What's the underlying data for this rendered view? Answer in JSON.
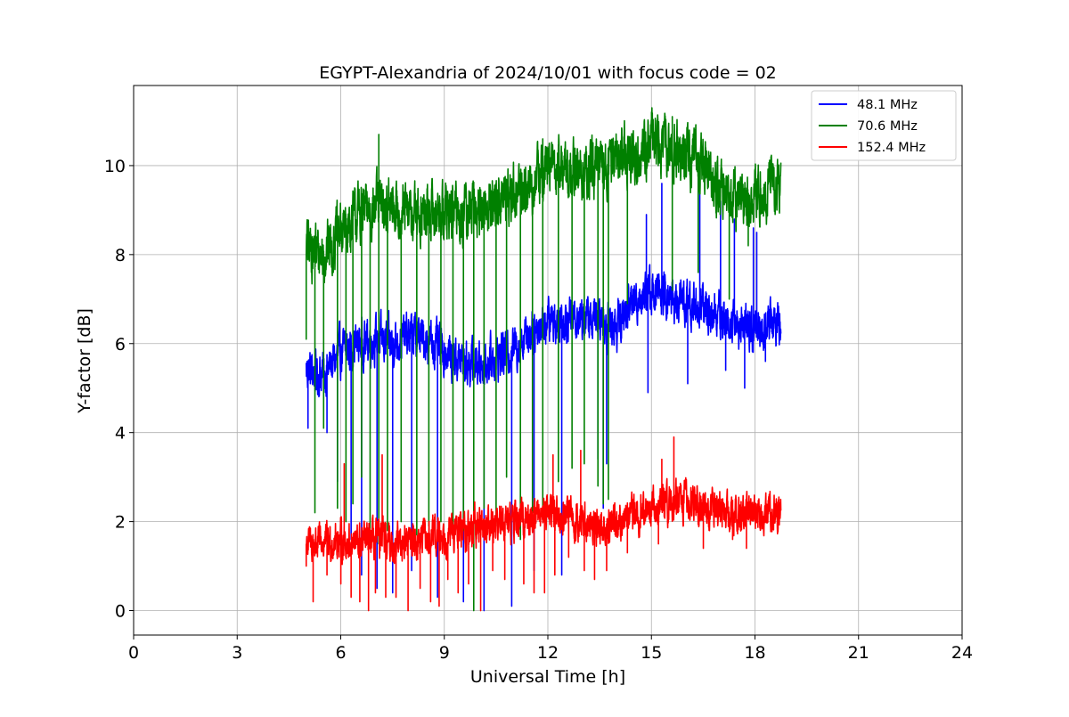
{
  "chart_data": {
    "type": "line",
    "title": "EGYPT-Alexandria of 2024/10/01 with focus code = 02",
    "xlabel": "Universal Time [h]",
    "ylabel": "Y-factor [dB]",
    "xlim": [
      0,
      24
    ],
    "ylim": [
      -0.55,
      11.8
    ],
    "xticks": [
      0,
      3,
      6,
      9,
      12,
      15,
      18,
      21,
      24
    ],
    "xtick_labels": [
      "0",
      "3",
      "6",
      "9",
      "12",
      "15",
      "18",
      "21",
      "24"
    ],
    "yticks": [
      0,
      2,
      4,
      6,
      8,
      10
    ],
    "ytick_labels": [
      "0",
      "2",
      "4",
      "6",
      "8",
      "10"
    ],
    "grid": true,
    "legend_position": "top-right",
    "x": [
      5.0,
      5.5,
      6.0,
      6.5,
      7.0,
      7.5,
      8.0,
      8.5,
      9.0,
      9.5,
      10.0,
      10.5,
      11.0,
      11.5,
      12.0,
      12.5,
      13.0,
      13.5,
      14.0,
      14.5,
      15.0,
      15.5,
      16.0,
      16.5,
      17.0,
      17.5,
      18.0,
      18.5,
      18.75
    ],
    "series": [
      {
        "name": " 48.1 MHz",
        "color": "#0000ff",
        "values": [
          5.4,
          5.3,
          5.8,
          6.0,
          6.1,
          6.0,
          6.2,
          6.1,
          5.8,
          5.6,
          5.5,
          5.7,
          5.9,
          6.3,
          6.5,
          6.6,
          6.6,
          6.5,
          6.4,
          7.0,
          7.2,
          7.0,
          6.9,
          6.8,
          6.6,
          6.4,
          6.3,
          6.5,
          6.4
        ],
        "noise": 0.35,
        "dips": [
          [
            5.05,
            4.1
          ],
          [
            5.6,
            4.0
          ],
          [
            5.9,
            2.9
          ],
          [
            6.3,
            1.6
          ],
          [
            6.6,
            0.8
          ],
          [
            7.05,
            0.5
          ],
          [
            7.5,
            0.4
          ],
          [
            8.05,
            0.9
          ],
          [
            8.8,
            0.3
          ],
          [
            9.55,
            0.2
          ],
          [
            10.15,
            0.0
          ],
          [
            10.95,
            0.1
          ],
          [
            11.6,
            0.9
          ],
          [
            12.4,
            0.8
          ],
          [
            13.45,
            3.4
          ],
          [
            13.6,
            2.3
          ],
          [
            13.7,
            3.3
          ],
          [
            14.9,
            4.9
          ],
          [
            16.05,
            5.1
          ],
          [
            17.15,
            5.4
          ],
          [
            17.7,
            5.0
          ],
          [
            18.3,
            5.6
          ]
        ],
        "spikes": [
          [
            14.85,
            8.9
          ],
          [
            15.3,
            9.6
          ],
          [
            16.4,
            9.4
          ],
          [
            17.0,
            9.2
          ],
          [
            17.4,
            8.8
          ],
          [
            17.95,
            8.6
          ],
          [
            18.05,
            8.5
          ]
        ]
      },
      {
        "name": " 70.6 MHz",
        "color": "#008000",
        "values": [
          8.2,
          8.0,
          8.5,
          8.9,
          9.1,
          9.0,
          8.9,
          8.9,
          9.0,
          8.9,
          9.0,
          9.2,
          9.4,
          9.5,
          10.0,
          9.9,
          9.8,
          9.9,
          10.3,
          10.2,
          10.5,
          10.4,
          10.2,
          10.0,
          9.5,
          9.2,
          9.3,
          9.6,
          9.5
        ],
        "noise": 0.45,
        "dips": [
          [
            5.0,
            6.1
          ],
          [
            5.25,
            2.2
          ],
          [
            5.5,
            4.1
          ],
          [
            5.9,
            2.3
          ],
          [
            6.15,
            2.0
          ],
          [
            6.35,
            2.4
          ],
          [
            6.6,
            3.0
          ],
          [
            6.85,
            1.7
          ],
          [
            7.1,
            1.5
          ],
          [
            7.35,
            1.8
          ],
          [
            7.75,
            2.0
          ],
          [
            8.2,
            1.7
          ],
          [
            8.55,
            1.9
          ],
          [
            8.9,
            2.0
          ],
          [
            9.25,
            1.9
          ],
          [
            9.55,
            1.8
          ],
          [
            9.85,
            0.0
          ],
          [
            10.15,
            2.3
          ],
          [
            10.5,
            1.9
          ],
          [
            10.8,
            3.0
          ],
          [
            11.2,
            1.6
          ],
          [
            11.55,
            2.2
          ],
          [
            11.85,
            2.1
          ],
          [
            12.3,
            2.9
          ],
          [
            12.7,
            3.2
          ],
          [
            13.05,
            3.3
          ],
          [
            13.45,
            2.8
          ],
          [
            13.6,
            2.4
          ],
          [
            13.75,
            2.5
          ],
          [
            14.3,
            6.9
          ],
          [
            15.6,
            7.2
          ],
          [
            16.35,
            7.6
          ],
          [
            17.25,
            7.0
          ],
          [
            17.8,
            8.2
          ]
        ],
        "spikes": [
          [
            7.1,
            10.7
          ],
          [
            15.0,
            11.2
          ],
          [
            15.6,
            11.1
          ],
          [
            11.85,
            10.6
          ]
        ]
      },
      {
        "name": " 152.4 MHz",
        "color": "#ff0000",
        "values": [
          1.5,
          1.5,
          1.6,
          1.5,
          1.6,
          1.5,
          1.6,
          1.6,
          1.7,
          1.8,
          1.9,
          2.0,
          2.0,
          2.1,
          2.3,
          2.1,
          2.0,
          1.9,
          2.0,
          2.2,
          2.3,
          2.4,
          2.5,
          2.3,
          2.2,
          2.1,
          2.2,
          2.2,
          2.1
        ],
        "noise": 0.3,
        "dips": [
          [
            5.0,
            1.0
          ],
          [
            5.2,
            0.2
          ],
          [
            5.6,
            0.8
          ],
          [
            6.0,
            0.6
          ],
          [
            6.3,
            0.3
          ],
          [
            6.55,
            0.2
          ],
          [
            6.8,
            0.0
          ],
          [
            7.0,
            0.4
          ],
          [
            7.3,
            0.3
          ],
          [
            7.6,
            0.3
          ],
          [
            7.95,
            0.0
          ],
          [
            8.3,
            0.5
          ],
          [
            8.6,
            0.2
          ],
          [
            8.85,
            0.1
          ],
          [
            9.1,
            0.7
          ],
          [
            9.4,
            0.4
          ],
          [
            9.7,
            0.6
          ],
          [
            10.05,
            0.0
          ],
          [
            10.4,
            0.9
          ],
          [
            10.75,
            0.7
          ],
          [
            11.3,
            0.6
          ],
          [
            11.6,
            0.4
          ],
          [
            11.9,
            0.4
          ],
          [
            12.2,
            0.8
          ],
          [
            12.6,
            1.2
          ],
          [
            13.05,
            0.9
          ],
          [
            13.35,
            0.7
          ],
          [
            13.7,
            0.9
          ],
          [
            14.3,
            1.3
          ],
          [
            15.2,
            1.5
          ],
          [
            16.5,
            1.4
          ],
          [
            17.35,
            1.6
          ],
          [
            17.75,
            1.4
          ]
        ],
        "spikes": [
          [
            6.1,
            3.3
          ],
          [
            7.2,
            3.5
          ],
          [
            12.15,
            3.5
          ],
          [
            12.95,
            3.6
          ],
          [
            15.65,
            3.9
          ],
          [
            15.3,
            3.4
          ]
        ]
      }
    ]
  }
}
